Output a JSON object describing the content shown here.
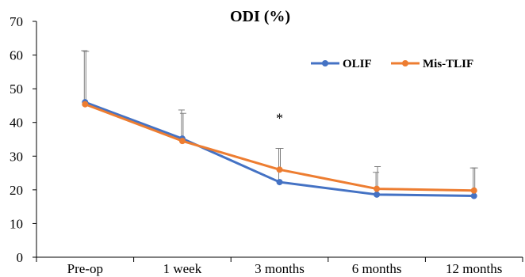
{
  "chart_data": {
    "type": "line",
    "title": "ODI (%)",
    "xlabel": "",
    "ylabel": "",
    "categories": [
      "Pre-op",
      "1 week",
      "3 months",
      "6 months",
      "12 months"
    ],
    "ylim": [
      0,
      70
    ],
    "yticks": [
      0,
      10,
      20,
      30,
      40,
      50,
      60,
      70
    ],
    "grid": false,
    "legend_position": "top-right",
    "series": [
      {
        "name": "OLIF",
        "color": "#4472C4",
        "values": [
          46.0,
          35.2,
          22.3,
          18.6,
          18.2
        ],
        "error_upper": [
          15.3,
          8.5,
          10.0,
          6.6,
          8.3
        ]
      },
      {
        "name": "Mis-TLIF",
        "color": "#ED7D31",
        "values": [
          45.4,
          34.5,
          26.0,
          20.3,
          19.8
        ],
        "error_upper": [
          15.7,
          8.2,
          6.3,
          6.6,
          6.7
        ]
      }
    ],
    "annotations": [
      {
        "text": "*",
        "category": "3 months",
        "y": 41.5
      }
    ]
  }
}
